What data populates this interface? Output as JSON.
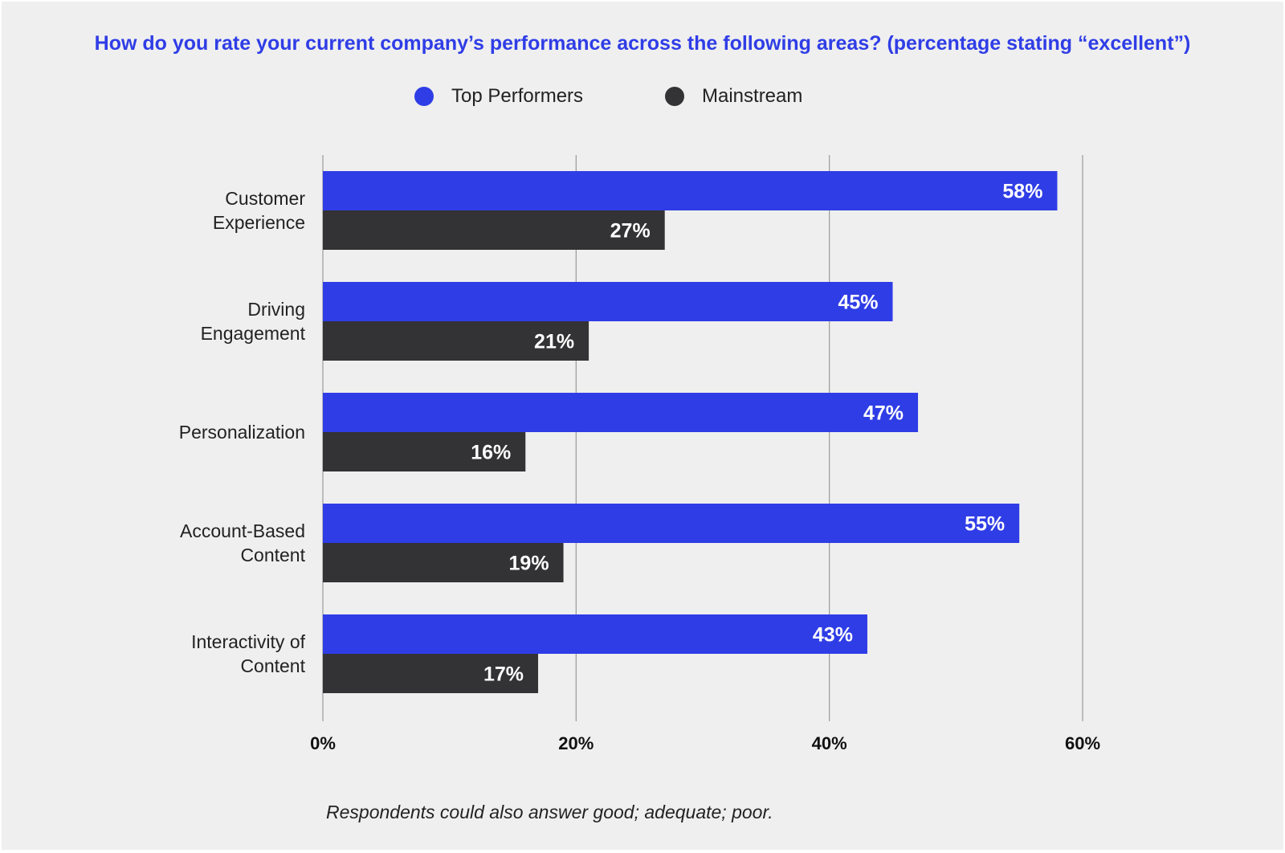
{
  "chart_data": {
    "type": "bar",
    "orientation": "horizontal",
    "title": "How do you rate your current company’s performance across the following areas? (percentage stating “excellent”)",
    "categories": [
      [
        "Customer",
        "Experience"
      ],
      [
        "Driving",
        "Engagement"
      ],
      [
        "Personalization"
      ],
      [
        "Account-Based",
        "Content"
      ],
      [
        "Interactivity of",
        "Content"
      ]
    ],
    "series": [
      {
        "name": "Top Performers",
        "color": "#2f3de6",
        "values": [
          58,
          45,
          47,
          55,
          43
        ]
      },
      {
        "name": "Mainstream",
        "color": "#333234",
        "values": [
          27,
          21,
          16,
          19,
          17
        ]
      }
    ],
    "xlim": [
      0,
      60
    ],
    "xticks": [
      0,
      20,
      40,
      60
    ],
    "tick_suffix": "%",
    "value_suffix": "%",
    "grid": true,
    "legend_position": "top-center"
  },
  "footnote": "Respondents could also answer good; adequate; poor."
}
